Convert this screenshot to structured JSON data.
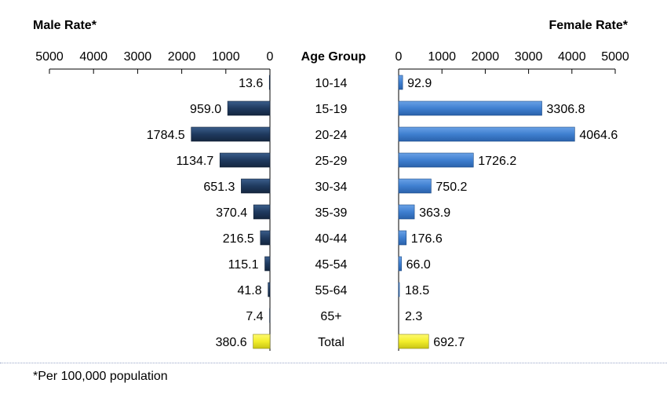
{
  "chart_data": {
    "type": "bar",
    "male_title": "Male Rate*",
    "female_title": "Female Rate*",
    "center_header": "Age Group",
    "axis_ticks": [
      5000,
      4000,
      3000,
      2000,
      1000,
      0
    ],
    "female_axis_ticks": [
      0,
      1000,
      2000,
      3000,
      4000,
      5000
    ],
    "xlim": [
      0,
      5000
    ],
    "categories": [
      "10-14",
      "15-19",
      "20-24",
      "25-29",
      "30-34",
      "35-39",
      "40-44",
      "45-54",
      "55-64",
      "65+",
      "Total"
    ],
    "series": [
      {
        "name": "Male Rate*",
        "values": [
          13.6,
          959.0,
          1784.5,
          1134.7,
          651.3,
          370.4,
          216.5,
          115.1,
          41.8,
          7.4,
          380.6
        ],
        "labels": [
          "13.6",
          "959.0",
          "1784.5",
          "1134.7",
          "651.3",
          "370.4",
          "216.5",
          "115.1",
          "41.8",
          "7.4",
          "380.6"
        ]
      },
      {
        "name": "Female Rate*",
        "values": [
          92.9,
          3306.8,
          4064.6,
          1726.2,
          750.2,
          363.9,
          176.6,
          66.0,
          18.5,
          2.3,
          692.7
        ],
        "labels": [
          "92.9",
          "3306.8",
          "4064.6",
          "1726.2",
          "750.2",
          "363.9",
          "176.6",
          "66.0",
          "18.5",
          "2.3",
          "692.7"
        ]
      }
    ],
    "colors": {
      "male": "#1f3a5f",
      "female": "#3f7fd0",
      "total": "#f2ee2a"
    }
  },
  "footnote": "*Per 100,000 population"
}
